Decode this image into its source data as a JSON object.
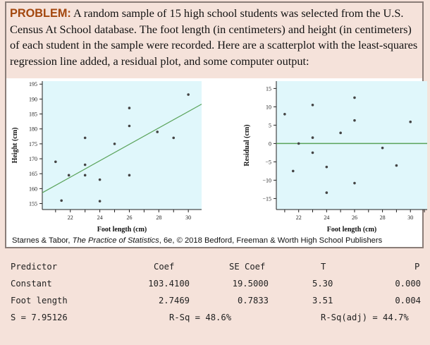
{
  "problem": {
    "label": "PROBLEM:",
    "text": "A random sample of 15 high school students was selected from the U.S. Census At School database. The foot length (in centimeters) and height (in centimeters) of each student in the sample were recorded. Here are a scatterplot with the least-squares regression line added, a residual plot, and some computer output:"
  },
  "caption": {
    "before": "Starnes & Tabor, ",
    "title": "The Practice of Statistics",
    "after": ", 6e, © 2018 Bedford, Freeman & Worth High School Publishers"
  },
  "colors": {
    "plot_bg": "#e0f7fb",
    "line": "#5aa35a",
    "point": "#444444",
    "label": "#a3470e"
  },
  "chart_data": [
    {
      "type": "scatter",
      "xlabel": "Foot length (cm)",
      "ylabel": "Height (cm)",
      "xlim": [
        20.1,
        30.9
      ],
      "ylim": [
        153,
        196
      ],
      "xticks": [
        22,
        24,
        26,
        28,
        30
      ],
      "yticks": [
        155,
        160,
        165,
        170,
        175,
        180,
        185,
        190,
        195
      ],
      "points": [
        [
          21,
          169
        ],
        [
          21.4,
          156
        ],
        [
          21.9,
          164.5
        ],
        [
          23,
          177
        ],
        [
          23,
          168
        ],
        [
          23,
          164.5
        ],
        [
          24,
          163
        ],
        [
          24,
          155.8
        ],
        [
          25,
          175
        ],
        [
          26,
          187
        ],
        [
          26,
          181
        ],
        [
          26,
          164.5
        ],
        [
          27.9,
          179
        ],
        [
          29,
          177
        ],
        [
          30,
          191.5
        ]
      ],
      "regression": {
        "intercept": 103.41,
        "slope": 2.7469
      }
    },
    {
      "type": "scatter",
      "xlabel": "Foot length (cm)",
      "ylabel": "Residual (cm)",
      "xlim": [
        20.4,
        31.2
      ],
      "ylim": [
        -18,
        17
      ],
      "xticks": [
        22,
        24,
        26,
        28,
        30
      ],
      "yticks": [
        -15,
        -10,
        -5,
        0,
        5,
        10,
        15
      ],
      "points": [
        [
          21,
          8
        ],
        [
          21.6,
          -7.5
        ],
        [
          22,
          0
        ],
        [
          23,
          10.5
        ],
        [
          23,
          1.6
        ],
        [
          23,
          -2.5
        ],
        [
          24,
          -6.4
        ],
        [
          24,
          -13.4
        ],
        [
          25,
          2.9
        ],
        [
          26,
          12.5
        ],
        [
          26,
          6.3
        ],
        [
          26,
          -10.8
        ],
        [
          28,
          -1.2
        ],
        [
          29,
          -6
        ],
        [
          30,
          5.9
        ]
      ],
      "reference_line": 0
    }
  ],
  "output": {
    "headers": [
      "Predictor",
      "Coef",
      "SE Coef",
      "T",
      "P"
    ],
    "rows": [
      [
        "Constant",
        "103.4100",
        "19.5000",
        "5.30",
        "0.000"
      ],
      [
        "Foot length",
        "2.7469",
        "0.7833",
        "3.51",
        "0.004"
      ]
    ],
    "s": "S = 7.95126",
    "rsq": "R-Sq = 48.6%",
    "rsq_adj": "R-Sq(adj) = 44.7%"
  }
}
